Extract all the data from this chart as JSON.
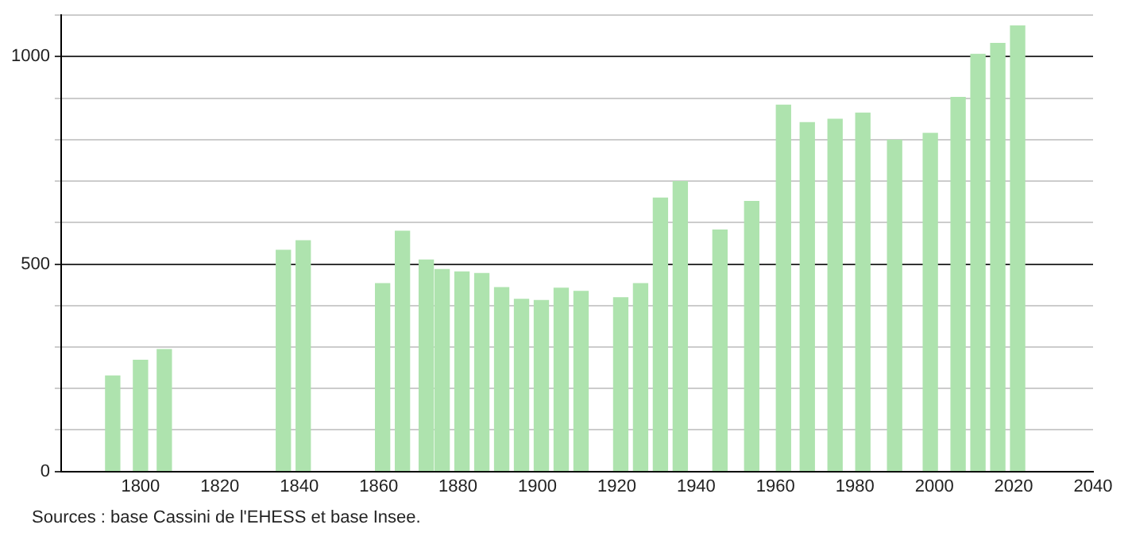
{
  "chart_data": {
    "type": "bar",
    "x": [
      1793,
      1800,
      1806,
      1836,
      1841,
      1861,
      1866,
      1872,
      1876,
      1881,
      1886,
      1891,
      1896,
      1901,
      1906,
      1911,
      1921,
      1926,
      1931,
      1936,
      1946,
      1954,
      1962,
      1968,
      1975,
      1982,
      1990,
      1999,
      2006,
      2011,
      2016,
      2021
    ],
    "values": [
      230,
      268,
      294,
      533,
      556,
      453,
      579,
      510,
      487,
      481,
      477,
      443,
      415,
      412,
      442,
      434,
      419,
      453,
      659,
      699,
      582,
      651,
      883,
      841,
      849,
      864,
      799,
      815,
      902,
      1006,
      1032,
      1074
    ],
    "color": "#aee3ae",
    "xlim": [
      1780,
      2040
    ],
    "xticks": [
      1800,
      1820,
      1840,
      1860,
      1880,
      1900,
      1920,
      1940,
      1960,
      1980,
      2000,
      2020,
      2040
    ],
    "ylim": [
      0,
      1100
    ],
    "yticks": [
      0,
      {
        "value": 100,
        "label": null
      },
      {
        "value": 200,
        "label": null
      },
      {
        "value": 300,
        "label": null
      },
      {
        "value": 400,
        "label": null
      },
      500,
      {
        "value": 600,
        "label": null
      },
      {
        "value": 700,
        "label": null
      },
      {
        "value": 800,
        "label": null
      },
      {
        "value": 900,
        "label": null
      },
      1000,
      {
        "value": 1100,
        "label": null
      }
    ],
    "grid": "y",
    "legend": false,
    "annotations": [
      "Sources : base Cassini de l'EHESS et base Insee."
    ]
  }
}
